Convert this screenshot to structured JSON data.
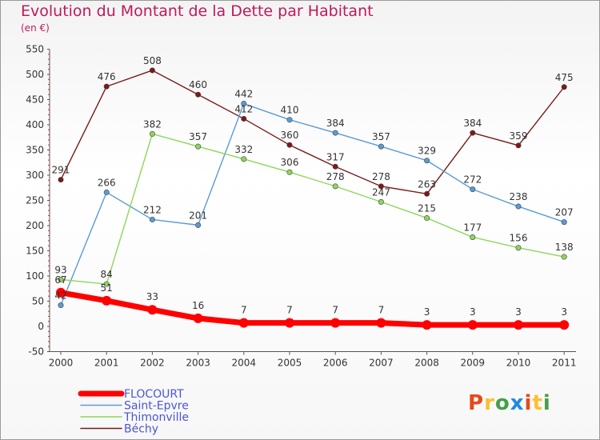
{
  "title": "Evolution du Montant de la Dette par Habitant",
  "unit": "(en €)",
  "logo": {
    "text": "Proxiti",
    "colors": [
      "#e64a19",
      "#fbc02d",
      "#43a047",
      "#1e88e5",
      "#e64a19",
      "#fbc02d",
      "#43a047"
    ]
  },
  "chart_data": {
    "type": "line",
    "title": "Evolution du Montant de la Dette par Habitant",
    "subtitle": "(en €)",
    "xlabel": "",
    "ylabel": "",
    "ylim": [
      -50,
      550
    ],
    "yticks": [
      -50,
      0,
      50,
      100,
      150,
      200,
      250,
      300,
      350,
      400,
      450,
      500,
      550
    ],
    "grid": false,
    "legend_position": "bottom-left",
    "x": [
      "2000",
      "2001",
      "2002",
      "2003",
      "2004",
      "2005",
      "2006",
      "2007",
      "2008",
      "2009",
      "2010",
      "2011"
    ],
    "series": [
      {
        "name": "Béchy",
        "color": "#7b1a1a",
        "values": [
          291,
          476,
          508,
          460,
          412,
          360,
          317,
          278,
          263,
          384,
          359,
          475
        ]
      },
      {
        "name": "Saint-Epvre",
        "color": "#5b9bd5",
        "values": [
          42,
          266,
          212,
          201,
          442,
          410,
          384,
          357,
          329,
          272,
          238,
          207
        ]
      },
      {
        "name": "Thimonville",
        "color": "#8ed65b",
        "values": [
          93,
          84,
          382,
          357,
          332,
          306,
          278,
          247,
          215,
          177,
          156,
          138
        ]
      },
      {
        "name": "FLOCOURT",
        "color": "#ff0000",
        "values": [
          67,
          51,
          33,
          16,
          7,
          7,
          7,
          7,
          3,
          3,
          3,
          3
        ]
      }
    ],
    "legend": [
      "FLOCOURT",
      "Saint-Epvre",
      "Thimonville",
      "Béchy"
    ]
  }
}
